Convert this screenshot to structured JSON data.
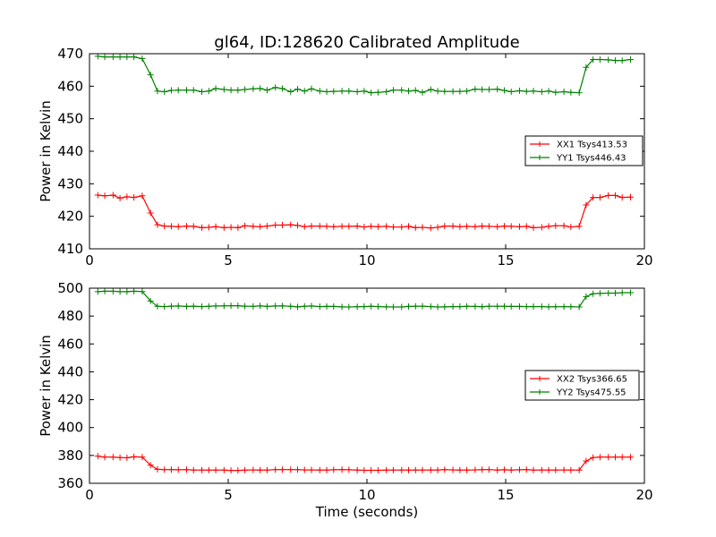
{
  "chart_data": {
    "type": "line",
    "title": "gl64, ID:128620 Calibrated Amplitude",
    "colors": {
      "XX": "#ff0000",
      "YY": "#008000"
    },
    "panels": [
      {
        "ylabel": "Power in Kelvin",
        "xlabel": "",
        "xlim": [
          0,
          20
        ],
        "ylim": [
          410,
          470
        ],
        "xticks": [
          0,
          5,
          10,
          15,
          20
        ],
        "yticks": [
          410,
          420,
          430,
          440,
          450,
          460,
          470
        ],
        "legend_position": "center-right",
        "series": [
          {
            "name": "XX1 Tsys413.53",
            "color": "#ff0000",
            "x": [
              0.3,
              0.55,
              0.85,
              1.1,
              1.35,
              1.6,
              1.9,
              2.2,
              2.45,
              2.7,
              2.95,
              3.2,
              3.5,
              3.75,
              4.05,
              4.3,
              4.55,
              4.85,
              5.1,
              5.35,
              5.6,
              5.9,
              6.15,
              6.4,
              6.7,
              6.95,
              7.25,
              7.5,
              7.75,
              8.0,
              8.3,
              8.55,
              8.8,
              9.1,
              9.35,
              9.65,
              9.9,
              10.15,
              10.4,
              10.7,
              10.95,
              11.25,
              11.5,
              11.75,
              12.0,
              12.3,
              12.55,
              12.8,
              13.1,
              13.35,
              13.6,
              13.9,
              14.15,
              14.4,
              14.7,
              14.95,
              15.2,
              15.5,
              15.75,
              16.0,
              16.3,
              16.55,
              16.8,
              17.1,
              17.35,
              17.65,
              17.9,
              18.15,
              18.4,
              18.7,
              18.95,
              19.2,
              19.5
            ],
            "y": [
              426.5,
              426.3,
              426.5,
              425.6,
              426.0,
              425.8,
              426.3,
              421.0,
              417.4,
              417.0,
              416.9,
              416.8,
              417.0,
              416.9,
              416.5,
              416.6,
              416.8,
              416.5,
              416.6,
              416.5,
              417.1,
              416.9,
              416.8,
              417.0,
              417.3,
              417.3,
              417.4,
              417.2,
              416.8,
              417.0,
              417.0,
              416.9,
              416.8,
              416.9,
              416.9,
              417.0,
              416.7,
              416.9,
              416.8,
              416.9,
              416.7,
              416.7,
              416.9,
              416.5,
              416.6,
              416.4,
              416.6,
              417.0,
              417.0,
              416.8,
              416.9,
              416.8,
              417.0,
              416.9,
              416.8,
              417.0,
              416.9,
              416.8,
              416.9,
              416.5,
              416.6,
              416.9,
              417.1,
              417.1,
              416.7,
              416.9,
              423.5,
              425.8,
              425.8,
              426.4,
              426.4,
              425.8,
              425.9
            ]
          },
          {
            "name": "YY1 Tsys446.43",
            "color": "#008000",
            "x": [
              0.3,
              0.55,
              0.85,
              1.1,
              1.35,
              1.6,
              1.9,
              2.2,
              2.45,
              2.7,
              2.95,
              3.2,
              3.5,
              3.75,
              4.05,
              4.3,
              4.55,
              4.85,
              5.1,
              5.35,
              5.6,
              5.9,
              6.15,
              6.4,
              6.7,
              6.95,
              7.25,
              7.5,
              7.75,
              8.0,
              8.3,
              8.55,
              8.8,
              9.1,
              9.35,
              9.65,
              9.9,
              10.15,
              10.4,
              10.7,
              10.95,
              11.25,
              11.5,
              11.75,
              12.0,
              12.3,
              12.55,
              12.8,
              13.1,
              13.35,
              13.6,
              13.9,
              14.15,
              14.4,
              14.7,
              14.95,
              15.2,
              15.5,
              15.75,
              16.0,
              16.3,
              16.55,
              16.8,
              17.1,
              17.35,
              17.65,
              17.9,
              18.15,
              18.4,
              18.7,
              18.95,
              19.2,
              19.5
            ],
            "y": [
              469.2,
              469.0,
              469.0,
              469.0,
              469.0,
              469.0,
              468.5,
              463.5,
              458.5,
              458.3,
              458.7,
              458.8,
              458.8,
              458.8,
              458.3,
              458.5,
              459.3,
              459.0,
              458.8,
              458.8,
              459.0,
              459.2,
              459.3,
              458.8,
              459.6,
              459.3,
              458.3,
              459.1,
              458.5,
              459.2,
              458.5,
              458.3,
              458.4,
              458.5,
              458.5,
              458.3,
              458.5,
              458.0,
              458.1,
              458.3,
              458.8,
              458.8,
              458.5,
              458.7,
              458.1,
              459.0,
              458.5,
              458.4,
              458.4,
              458.4,
              458.5,
              459.1,
              459.0,
              459.0,
              459.1,
              458.7,
              458.3,
              458.6,
              458.4,
              458.5,
              458.3,
              458.5,
              458.1,
              458.3,
              458.1,
              458.0,
              465.8,
              468.2,
              468.2,
              468.1,
              467.9,
              467.9,
              468.2
            ]
          }
        ]
      },
      {
        "ylabel": "Power in Kelvin",
        "xlabel": "Time (seconds)",
        "xlim": [
          0,
          20
        ],
        "ylim": [
          360,
          500
        ],
        "xticks": [
          0,
          5,
          10,
          15,
          20
        ],
        "yticks": [
          360,
          380,
          400,
          420,
          440,
          460,
          480,
          500
        ],
        "legend_position": "center-right",
        "series": [
          {
            "name": "XX2 Tsys366.65",
            "color": "#ff0000",
            "x": [
              0.3,
              0.55,
              0.85,
              1.1,
              1.35,
              1.6,
              1.9,
              2.2,
              2.45,
              2.7,
              2.95,
              3.2,
              3.5,
              3.75,
              4.05,
              4.3,
              4.55,
              4.85,
              5.1,
              5.35,
              5.6,
              5.9,
              6.15,
              6.4,
              6.7,
              6.95,
              7.25,
              7.5,
              7.75,
              8.0,
              8.3,
              8.55,
              8.8,
              9.1,
              9.35,
              9.65,
              9.9,
              10.15,
              10.4,
              10.7,
              10.95,
              11.25,
              11.5,
              11.75,
              12.0,
              12.3,
              12.55,
              12.8,
              13.1,
              13.35,
              13.6,
              13.9,
              14.15,
              14.4,
              14.7,
              14.95,
              15.2,
              15.5,
              15.75,
              16.0,
              16.3,
              16.55,
              16.8,
              17.1,
              17.35,
              17.65,
              17.9,
              18.15,
              18.4,
              18.7,
              18.95,
              19.2,
              19.5
            ],
            "y": [
              379.5,
              378.8,
              378.8,
              378.5,
              378.3,
              379.0,
              378.8,
              373.0,
              370.0,
              369.8,
              369.8,
              369.7,
              369.8,
              369.5,
              369.5,
              369.5,
              369.5,
              369.5,
              369.2,
              369.2,
              369.5,
              369.6,
              369.5,
              369.5,
              369.8,
              369.8,
              369.8,
              369.8,
              369.6,
              369.6,
              369.5,
              369.5,
              369.7,
              369.8,
              369.7,
              369.5,
              369.3,
              369.3,
              369.3,
              369.5,
              369.5,
              369.5,
              369.5,
              369.5,
              369.5,
              369.5,
              369.5,
              369.8,
              369.6,
              369.5,
              369.5,
              369.6,
              369.8,
              369.8,
              369.5,
              369.7,
              369.5,
              369.7,
              369.8,
              369.5,
              369.5,
              369.5,
              369.5,
              369.6,
              369.5,
              369.5,
              376.0,
              378.5,
              378.8,
              378.8,
              378.8,
              378.8,
              378.8
            ]
          },
          {
            "name": "YY2 Tsys475.55",
            "color": "#008000",
            "x": [
              0.3,
              0.55,
              0.85,
              1.1,
              1.35,
              1.6,
              1.9,
              2.2,
              2.45,
              2.7,
              2.95,
              3.2,
              3.5,
              3.75,
              4.05,
              4.3,
              4.55,
              4.85,
              5.1,
              5.35,
              5.6,
              5.9,
              6.15,
              6.4,
              6.7,
              6.95,
              7.25,
              7.5,
              7.75,
              8.0,
              8.3,
              8.55,
              8.8,
              9.1,
              9.35,
              9.65,
              9.9,
              10.15,
              10.4,
              10.7,
              10.95,
              11.25,
              11.5,
              11.75,
              12.0,
              12.3,
              12.55,
              12.8,
              13.1,
              13.35,
              13.6,
              13.9,
              14.15,
              14.4,
              14.7,
              14.95,
              15.2,
              15.5,
              15.75,
              16.0,
              16.3,
              16.55,
              16.8,
              17.1,
              17.35,
              17.65,
              17.9,
              18.15,
              18.4,
              18.7,
              18.95,
              19.2,
              19.5
            ],
            "y": [
              497.5,
              497.8,
              497.8,
              497.5,
              497.5,
              497.8,
              497.6,
              490.8,
              487.0,
              486.8,
              487.1,
              487.2,
              486.9,
              487.1,
              486.8,
              487.0,
              487.2,
              487.3,
              487.4,
              487.4,
              487.1,
              487.0,
              487.3,
              486.9,
              487.2,
              487.3,
              487.0,
              486.6,
              487.0,
              487.2,
              486.8,
              486.9,
              486.9,
              486.6,
              486.5,
              486.7,
              486.8,
              487.0,
              486.8,
              486.6,
              486.5,
              486.5,
              486.9,
              487.0,
              487.1,
              486.8,
              486.5,
              486.6,
              486.8,
              486.8,
              487.0,
              486.9,
              486.7,
              487.0,
              487.0,
              487.0,
              486.9,
              486.9,
              486.8,
              486.8,
              486.8,
              486.6,
              486.7,
              486.7,
              486.7,
              486.5,
              494.0,
              496.0,
              496.3,
              496.5,
              496.5,
              496.8,
              496.8
            ]
          }
        ]
      }
    ]
  }
}
